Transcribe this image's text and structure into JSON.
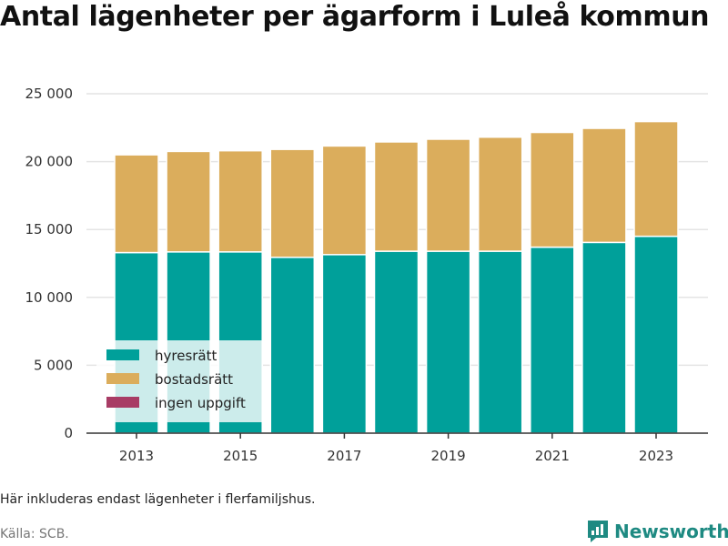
{
  "title": "Antal lägenheter per ägarform i Luleå kommun",
  "note": "Här inkluderas endast lägenheter i flerfamiljshus.",
  "source": "Källa: SCB.",
  "brand": {
    "name": "Newsworthy",
    "icon": "newsworthy-chart-logo-icon"
  },
  "colors": {
    "hyresratt": "#00a09a",
    "bostadsratt": "#dbad5c",
    "ingen_uppgift": "#a83c65",
    "grid": "#e4e4e4",
    "axis": "#333333",
    "brand": "#1e8a82"
  },
  "chart_data": {
    "type": "bar",
    "stacked": true,
    "categories": [
      "2013",
      "2014",
      "2015",
      "2016",
      "2017",
      "2018",
      "2019",
      "2020",
      "2021",
      "2022",
      "2023"
    ],
    "x_tick_labels": [
      "2013",
      "2015",
      "2017",
      "2019",
      "2021",
      "2023"
    ],
    "series": [
      {
        "name": "hyresrätt",
        "color": "#00a09a",
        "values": [
          13300,
          13350,
          13350,
          12950,
          13150,
          13400,
          13400,
          13400,
          13700,
          14050,
          14500
        ]
      },
      {
        "name": "bostadsrätt",
        "color": "#dbad5c",
        "values": [
          7200,
          7400,
          7450,
          7950,
          8000,
          8050,
          8250,
          8400,
          8450,
          8400,
          8450
        ]
      },
      {
        "name": "ingen uppgift",
        "color": "#a83c65",
        "values": [
          0,
          0,
          0,
          0,
          0,
          0,
          0,
          0,
          0,
          0,
          0
        ]
      }
    ],
    "ylim": [
      0,
      25000
    ],
    "y_ticks": [
      0,
      5000,
      10000,
      15000,
      20000,
      25000
    ],
    "y_tick_labels": [
      "0",
      "5 000",
      "10 000",
      "15 000",
      "20 000",
      "25 000"
    ],
    "grid": true,
    "legend_position": "bottom-left"
  }
}
